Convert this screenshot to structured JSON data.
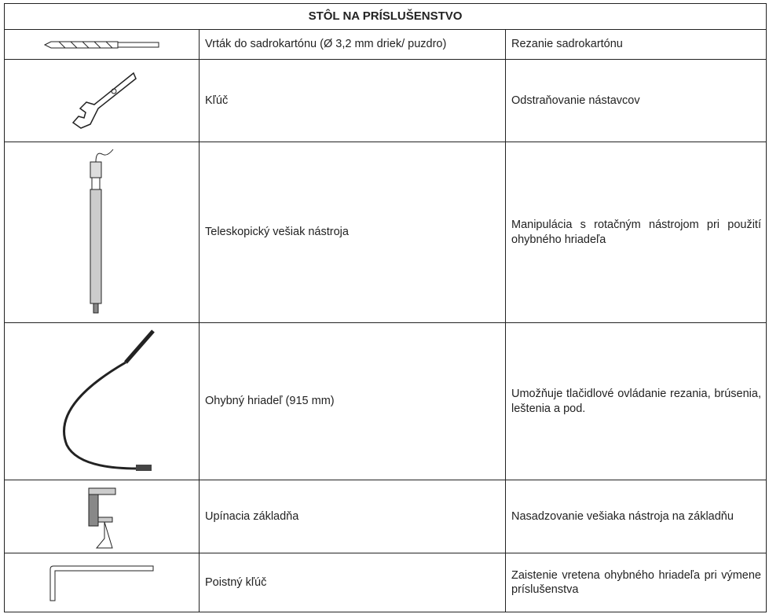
{
  "header": {
    "title": "STÔL NA PRÍSLUŠENSTVO"
  },
  "table": {
    "rows": [
      {
        "item": "Vrták do sadrokartónu (Ø 3,2 mm driek/ puzdro)",
        "use": "Rezanie sadrokartónu"
      },
      {
        "item": "Kľúč",
        "use": "Odstraňovanie nástavcov"
      },
      {
        "item": "Teleskopický vešiak nástroja",
        "use": "Manipulácia s rotačným nástrojom pri použití ohybného hriadeľa"
      },
      {
        "item": "Ohybný hriadeľ (915 mm)",
        "use": "Umožňuje tlačidlové ovládanie rezania, brúsenia, leštenia a pod."
      },
      {
        "item": "Upínacia základňa",
        "use": "Nasadzovanie vešiaka nástroja na základňu"
      },
      {
        "item": "Poistný kľúč",
        "use": "Zaistenie vretena ohybného hriadeľa pri výmene príslušenstva"
      }
    ]
  }
}
